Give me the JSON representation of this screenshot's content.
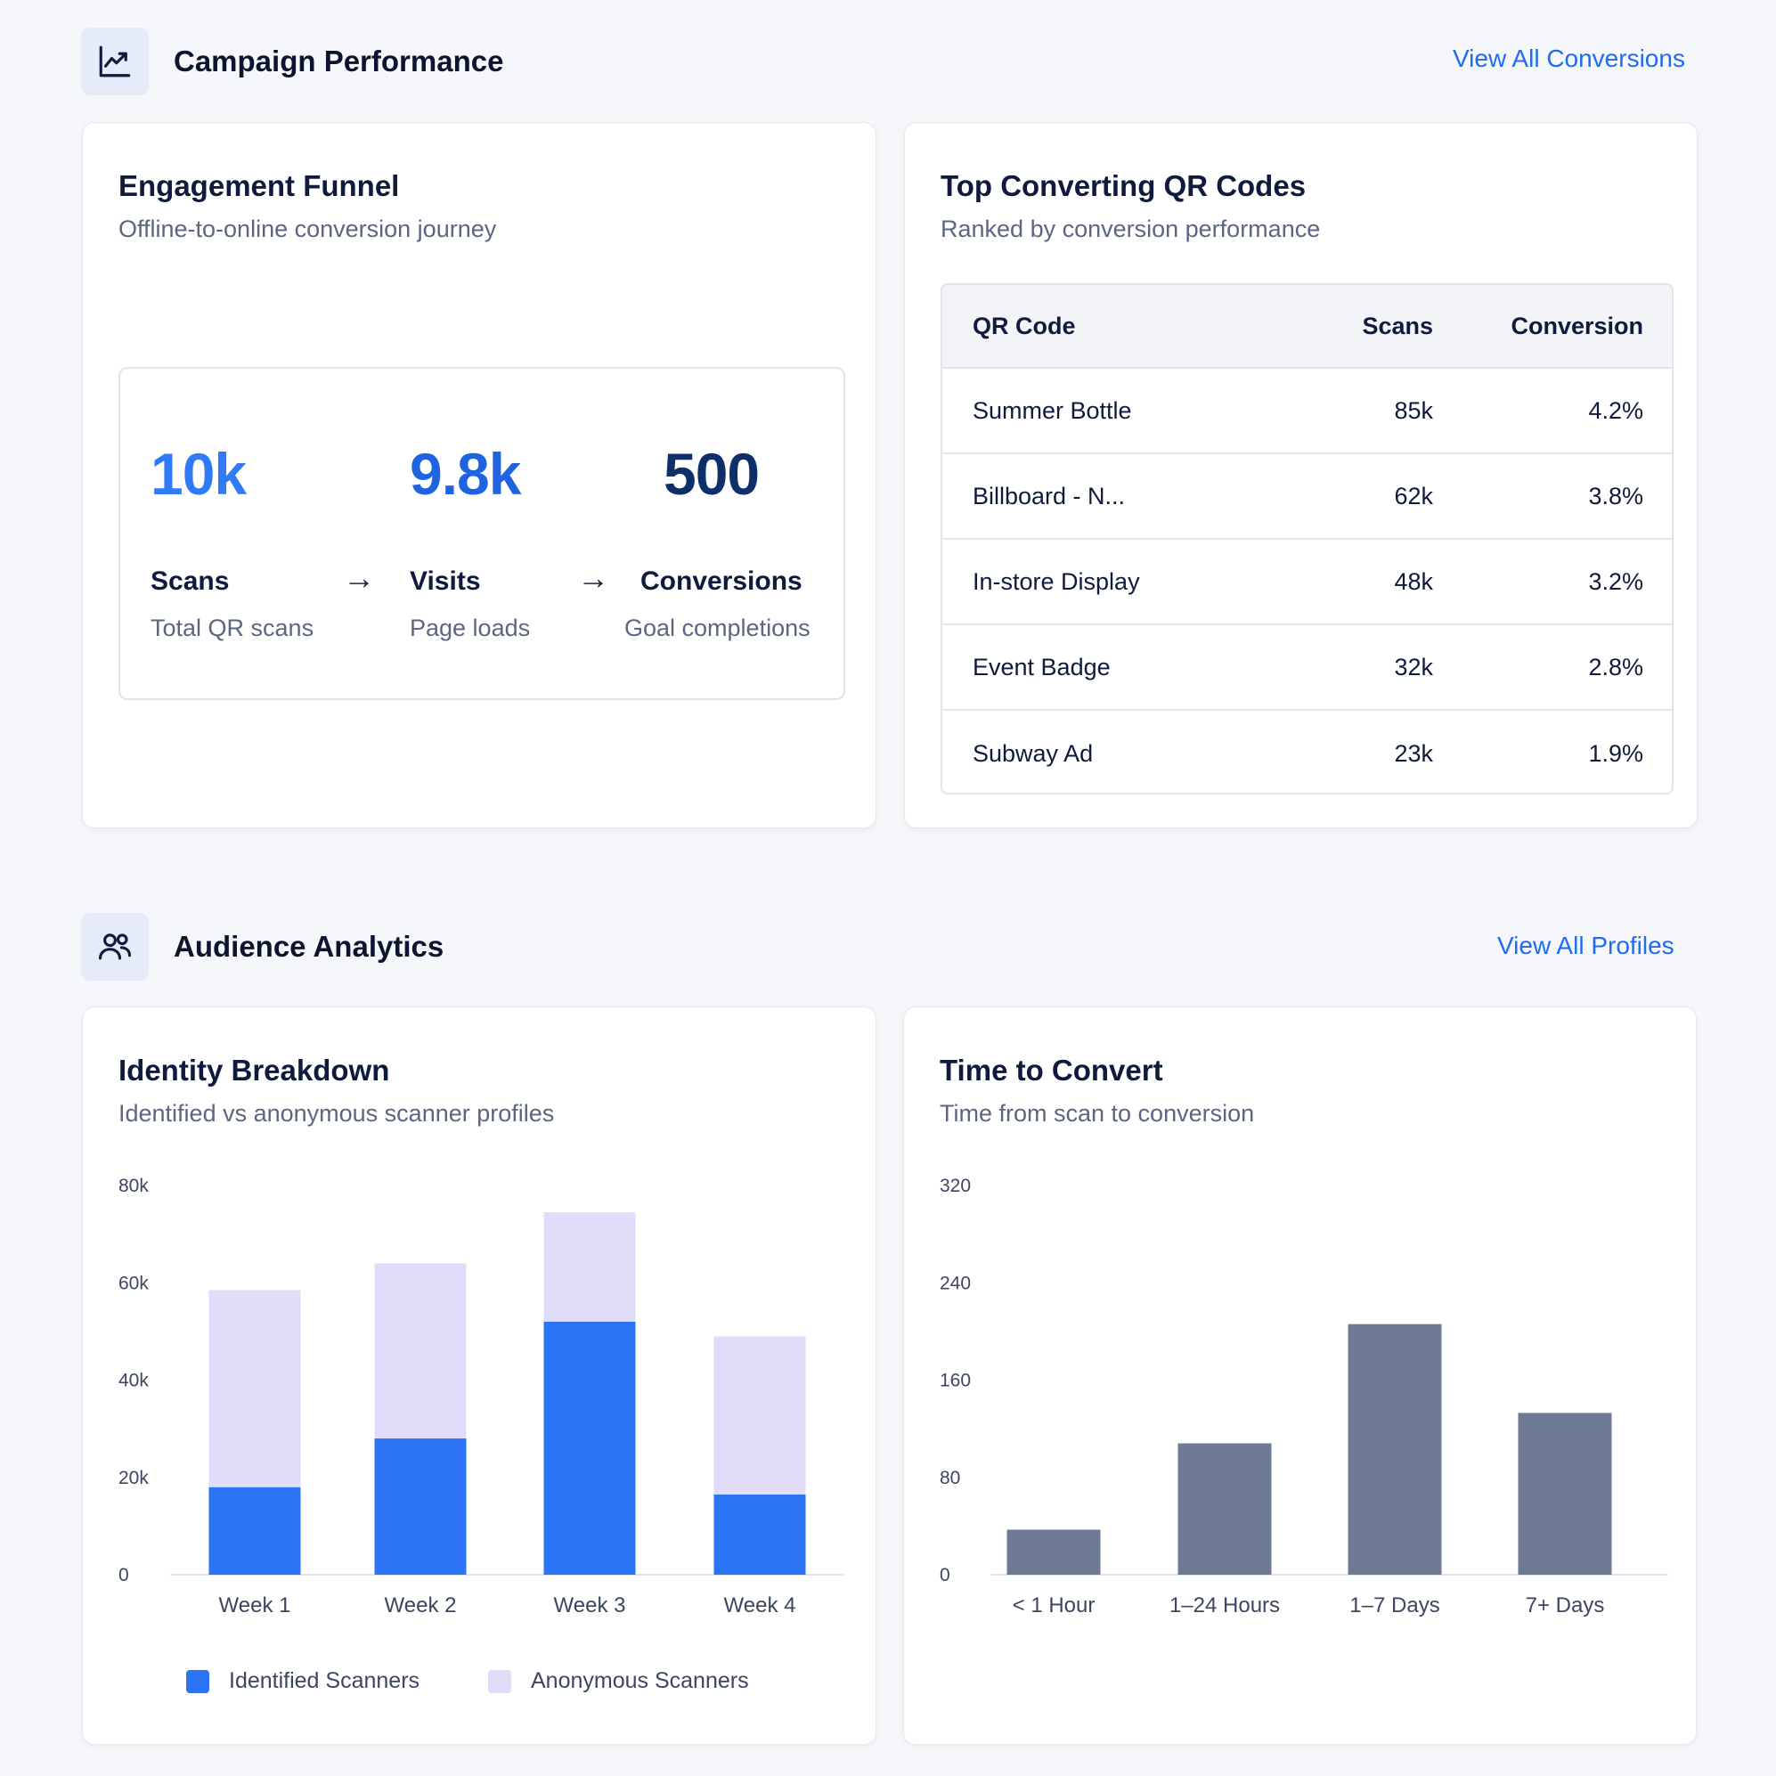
{
  "campaign": {
    "title": "Campaign Performance",
    "icon": "line-chart-icon",
    "link": "View All Conversions",
    "funnel": {
      "title": "Engagement Funnel",
      "subtitle": "Offline-to-online conversion journey",
      "stages": [
        {
          "value": "10k",
          "label": "Scans",
          "desc": "Total QR scans",
          "color": "#2f7bf5"
        },
        {
          "value": "9.8k",
          "label": "Visits",
          "desc": "Page loads",
          "color": "#1f63e0"
        },
        {
          "value": "500",
          "label": "Conversions",
          "desc": "Goal completions",
          "color": "#0f2f6b"
        }
      ],
      "arrow": "→"
    },
    "top_codes": {
      "title": "Top Converting QR Codes",
      "subtitle": "Ranked by conversion performance",
      "columns": [
        "QR Code",
        "Scans",
        "Conversion"
      ],
      "rows": [
        {
          "name": "Summer Bottle",
          "scans": "85k",
          "conversion": "4.2%"
        },
        {
          "name": "Billboard - N...",
          "scans": "62k",
          "conversion": "3.8%"
        },
        {
          "name": "In-store Display",
          "scans": "48k",
          "conversion": "3.2%"
        },
        {
          "name": "Event Badge",
          "scans": "32k",
          "conversion": "2.8%"
        },
        {
          "name": "Subway Ad",
          "scans": "23k",
          "conversion": "1.9%"
        }
      ]
    }
  },
  "audience": {
    "title": "Audience Analytics",
    "icon": "users-icon",
    "link": "View All Profiles",
    "identity": {
      "title": "Identity Breakdown",
      "subtitle": "Identified vs anonymous scanner profiles"
    },
    "time": {
      "title": "Time to Convert",
      "subtitle": "Time from scan to conversion"
    }
  },
  "colors": {
    "identified": "#2b74f6",
    "anonymous": "#e0dcfa",
    "time_bar": "#6e7a94",
    "link": "#1f6bf2"
  },
  "chart_data": [
    {
      "type": "bar",
      "stacked": true,
      "categories": [
        "Week 1",
        "Week 2",
        "Week 3",
        "Week 4"
      ],
      "series": [
        {
          "name": "Identified Scanners",
          "values": [
            18000,
            28000,
            52000,
            16500
          ]
        },
        {
          "name": "Anonymous Scanners",
          "values": [
            40500,
            36000,
            22500,
            32500
          ]
        }
      ],
      "ylim": [
        0,
        80000
      ],
      "yticks": [
        "0",
        "20k",
        "40k",
        "60k",
        "80k"
      ],
      "yticks_values": [
        0,
        20000,
        40000,
        60000,
        80000
      ],
      "legend": "bottom",
      "grid": false
    },
    {
      "type": "bar",
      "categories": [
        "< 1 Hour",
        "1–24 Hours",
        "1–7 Days",
        "7+ Days"
      ],
      "values": [
        37,
        108,
        206,
        133
      ],
      "ylim": [
        0,
        320
      ],
      "yticks": [
        "0",
        "80",
        "160",
        "240",
        "320"
      ],
      "yticks_values": [
        0,
        80,
        160,
        240,
        320
      ],
      "grid": false
    }
  ]
}
